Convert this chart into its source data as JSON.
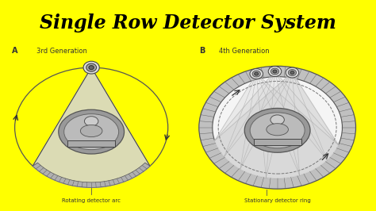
{
  "title": "Single Row Detector System",
  "title_color": "#000000",
  "title_bg": "#ff0000",
  "outer_bg": "#ffff00",
  "diagram_bg": "#f5f5f5",
  "label_A": "A",
  "label_B": "B",
  "label_3rd": "3rd Generation",
  "label_4th": "4th Generation",
  "label_rot": "Rotating detector arc",
  "label_stat": "Stationary detector ring",
  "gray_light": "#cccccc",
  "gray_beam": "#d5d5d5",
  "gray_medium": "#aaaaaa",
  "gray_dark": "#888888",
  "gray_patient": "#777777",
  "gray_ring": "#b0b0b0",
  "line_color": "#444444"
}
